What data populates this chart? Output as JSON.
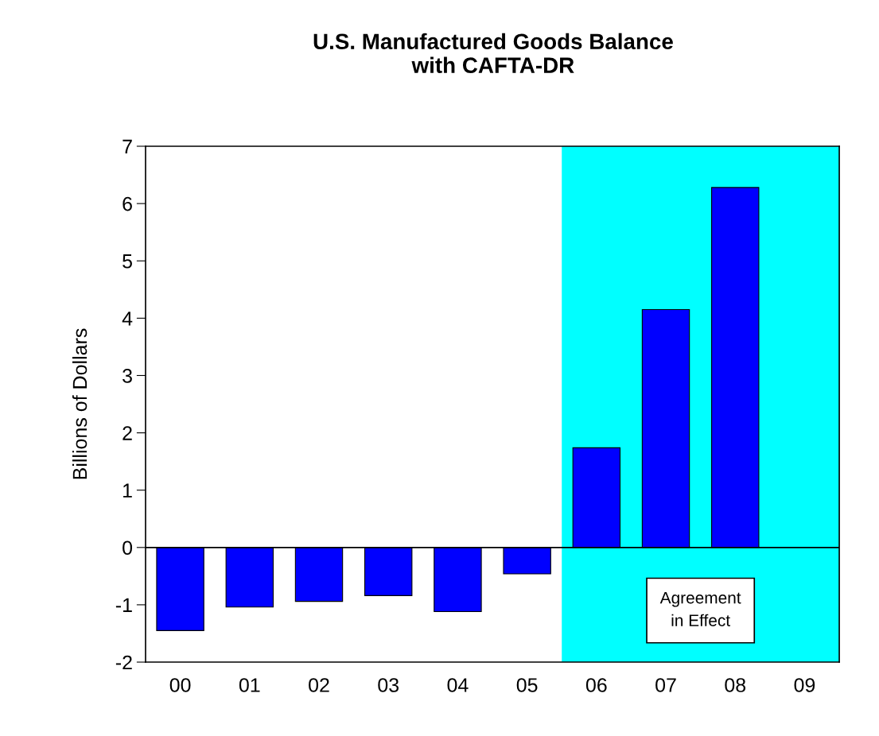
{
  "chart_data": {
    "type": "bar",
    "title": "U.S. Manufactured Goods Balance\nwith CAFTA-DR",
    "ylabel": "Billions of Dollars",
    "categories": [
      "00",
      "01",
      "02",
      "03",
      "04",
      "05",
      "06",
      "07",
      "08",
      "09"
    ],
    "values": [
      -1.45,
      -1.04,
      -0.94,
      -0.84,
      -1.12,
      -0.46,
      1.74,
      4.15,
      6.28,
      null
    ],
    "color": "#0000ff",
    "ylim": [
      -2,
      7
    ],
    "yticks": [
      -2,
      -1,
      0,
      1,
      2,
      3,
      4,
      5,
      6,
      7
    ],
    "ref_lines": [
      {
        "axis": "y",
        "value": 0,
        "color": "#000000"
      }
    ],
    "bands": [
      {
        "axis": "x",
        "from": "06",
        "to": "09",
        "label": "Agreement\nin Effect",
        "color": "#00ffff"
      }
    ],
    "grid": false,
    "legend": false
  }
}
